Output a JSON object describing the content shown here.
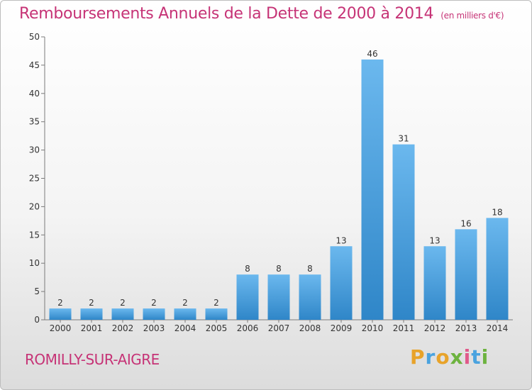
{
  "header": {
    "title": "Remboursements Annuels de la Dette de 2000 à 2014",
    "subtitle": "(en milliers d'€)"
  },
  "footer": {
    "commune": "ROMILLY-SUR-AIGRE",
    "logo_text": "Proxiti"
  },
  "colors": {
    "title": "#c63376",
    "bar_light": "#6bb8ee",
    "bar_dark": "#2f86c8"
  },
  "chart_data": {
    "type": "bar",
    "title": "Remboursements Annuels de la Dette de 2000 à 2014",
    "subtitle": "(en milliers d'€)",
    "categories": [
      "2000",
      "2001",
      "2002",
      "2003",
      "2004",
      "2005",
      "2006",
      "2007",
      "2008",
      "2009",
      "2010",
      "2011",
      "2012",
      "2013",
      "2014"
    ],
    "values": [
      2,
      2,
      2,
      2,
      2,
      2,
      8,
      8,
      8,
      13,
      46,
      31,
      13,
      16,
      18
    ],
    "ylim": [
      0,
      50
    ],
    "yticks": [
      0,
      5,
      10,
      15,
      20,
      25,
      30,
      35,
      40,
      45,
      50
    ],
    "grid": false,
    "data_labels": true
  }
}
